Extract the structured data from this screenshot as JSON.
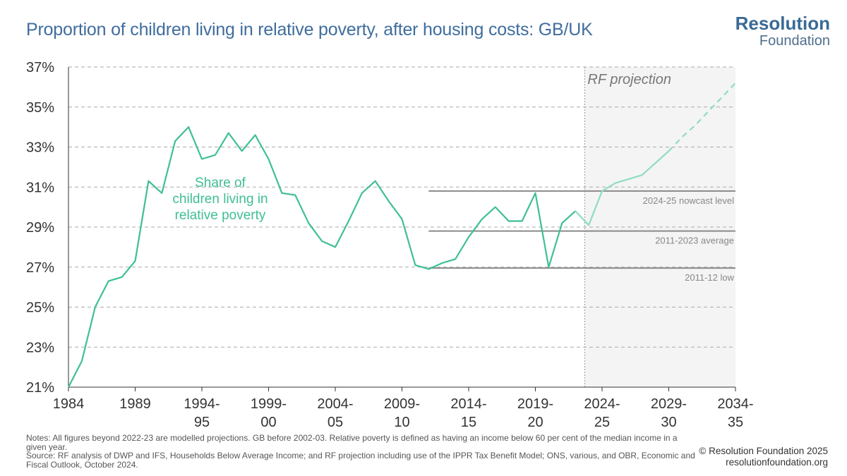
{
  "title": "Proportion of children living in relative poverty, after housing costs: GB/UK",
  "logo": {
    "line1": "Resolution",
    "line2": "Foundation"
  },
  "notes": {
    "line1": "Notes: All figures beyond 2022-23 are modelled projections. GB before 2002-03. Relative poverty is defined as having an income below 60 per cent of the median income in a given year.",
    "line2": "Source: RF analysis of DWP and IFS, Households Below Average Income; and RF projection including use of the IPPR Tax Benefit Model; ONS, various, and OBR, Economic and Fiscal Outlook, October 2024."
  },
  "credit": {
    "line1": "© Resolution Foundation 2025",
    "line2": "resolutionfoundation.org"
  },
  "colors": {
    "series": "#3fbf94",
    "projection": "#8fdcc0",
    "reference": "#8a8a8a",
    "shade": "#f4f4f4",
    "grid": "#aaaaaa"
  },
  "chart_data": {
    "type": "line",
    "title": "Proportion of children living in relative poverty, after housing costs: GB/UK",
    "ylim": [
      21,
      37
    ],
    "yticks": [
      "21%",
      "23%",
      "25%",
      "27%",
      "29%",
      "31%",
      "33%",
      "35%",
      "37%"
    ],
    "xticks": [
      {
        "x": 1984,
        "line1": "1984",
        "line2": ""
      },
      {
        "x": 1989,
        "line1": "1989",
        "line2": ""
      },
      {
        "x": 1994,
        "line1": "1994-",
        "line2": "95"
      },
      {
        "x": 1999,
        "line1": "1999-",
        "line2": "00"
      },
      {
        "x": 2004,
        "line1": "2004-",
        "line2": "05"
      },
      {
        "x": 2009,
        "line1": "2009-",
        "line2": "10"
      },
      {
        "x": 2014,
        "line1": "2014-",
        "line2": "15"
      },
      {
        "x": 2019,
        "line1": "2019-",
        "line2": "20"
      },
      {
        "x": 2024,
        "line1": "2024-",
        "line2": "25"
      },
      {
        "x": 2029,
        "line1": "2029-",
        "line2": "30"
      },
      {
        "x": 2034,
        "line1": "2034-",
        "line2": "35"
      }
    ],
    "xlim": [
      1984,
      2034
    ],
    "series": [
      {
        "label": "Share of children living in relative poverty",
        "label_lines": [
          "Share of",
          "children living in",
          "relative poverty"
        ],
        "x": [
          1984,
          1985,
          1986,
          1987,
          1988,
          1989,
          1990,
          1991,
          1992,
          1993,
          1994,
          1995,
          1996,
          1997,
          1998,
          1999,
          2000,
          2001,
          2002,
          2003,
          2004,
          2005,
          2006,
          2007,
          2008,
          2009,
          2010,
          2011,
          2012,
          2013,
          2014,
          2015,
          2016,
          2017,
          2018,
          2019,
          2020,
          2021,
          2022
        ],
        "values": [
          21.0,
          22.3,
          25.0,
          26.3,
          26.5,
          27.3,
          31.3,
          30.7,
          33.3,
          34.0,
          32.4,
          32.6,
          33.7,
          32.8,
          33.6,
          32.4,
          30.7,
          30.6,
          29.2,
          28.3,
          28.0,
          29.3,
          30.7,
          31.3,
          30.3,
          29.4,
          27.1,
          26.9,
          27.2,
          27.4,
          28.5,
          29.4,
          30.0,
          29.3,
          29.3,
          30.7,
          27.0,
          29.2,
          29.8
        ]
      },
      {
        "label": "RF projection",
        "x": [
          2022,
          2023,
          2024,
          2025,
          2026,
          2027,
          2028,
          2029
        ],
        "values": [
          29.8,
          29.1,
          30.8,
          31.2,
          31.4,
          31.6,
          32.2,
          32.8
        ]
      },
      {
        "label": "RF projection (dashed)",
        "x": [
          2029,
          2030,
          2031,
          2032,
          2033,
          2034
        ],
        "values": [
          32.8,
          33.5,
          34.1,
          34.8,
          35.5,
          36.2
        ]
      }
    ],
    "reference_lines": [
      {
        "label": "2024-25 nowcast level",
        "value": 30.8,
        "x_start": 2011,
        "x_end": 2034
      },
      {
        "label": "2011-2023 average",
        "value": 28.8,
        "x_start": 2011,
        "x_end": 2034
      },
      {
        "label": "2011-12 low",
        "value": 26.95,
        "x_start": 2011,
        "x_end": 2034
      }
    ],
    "projection_region": {
      "label": "RF projection",
      "x_start": 2022.7,
      "x_end": 2034
    },
    "grid": true
  }
}
